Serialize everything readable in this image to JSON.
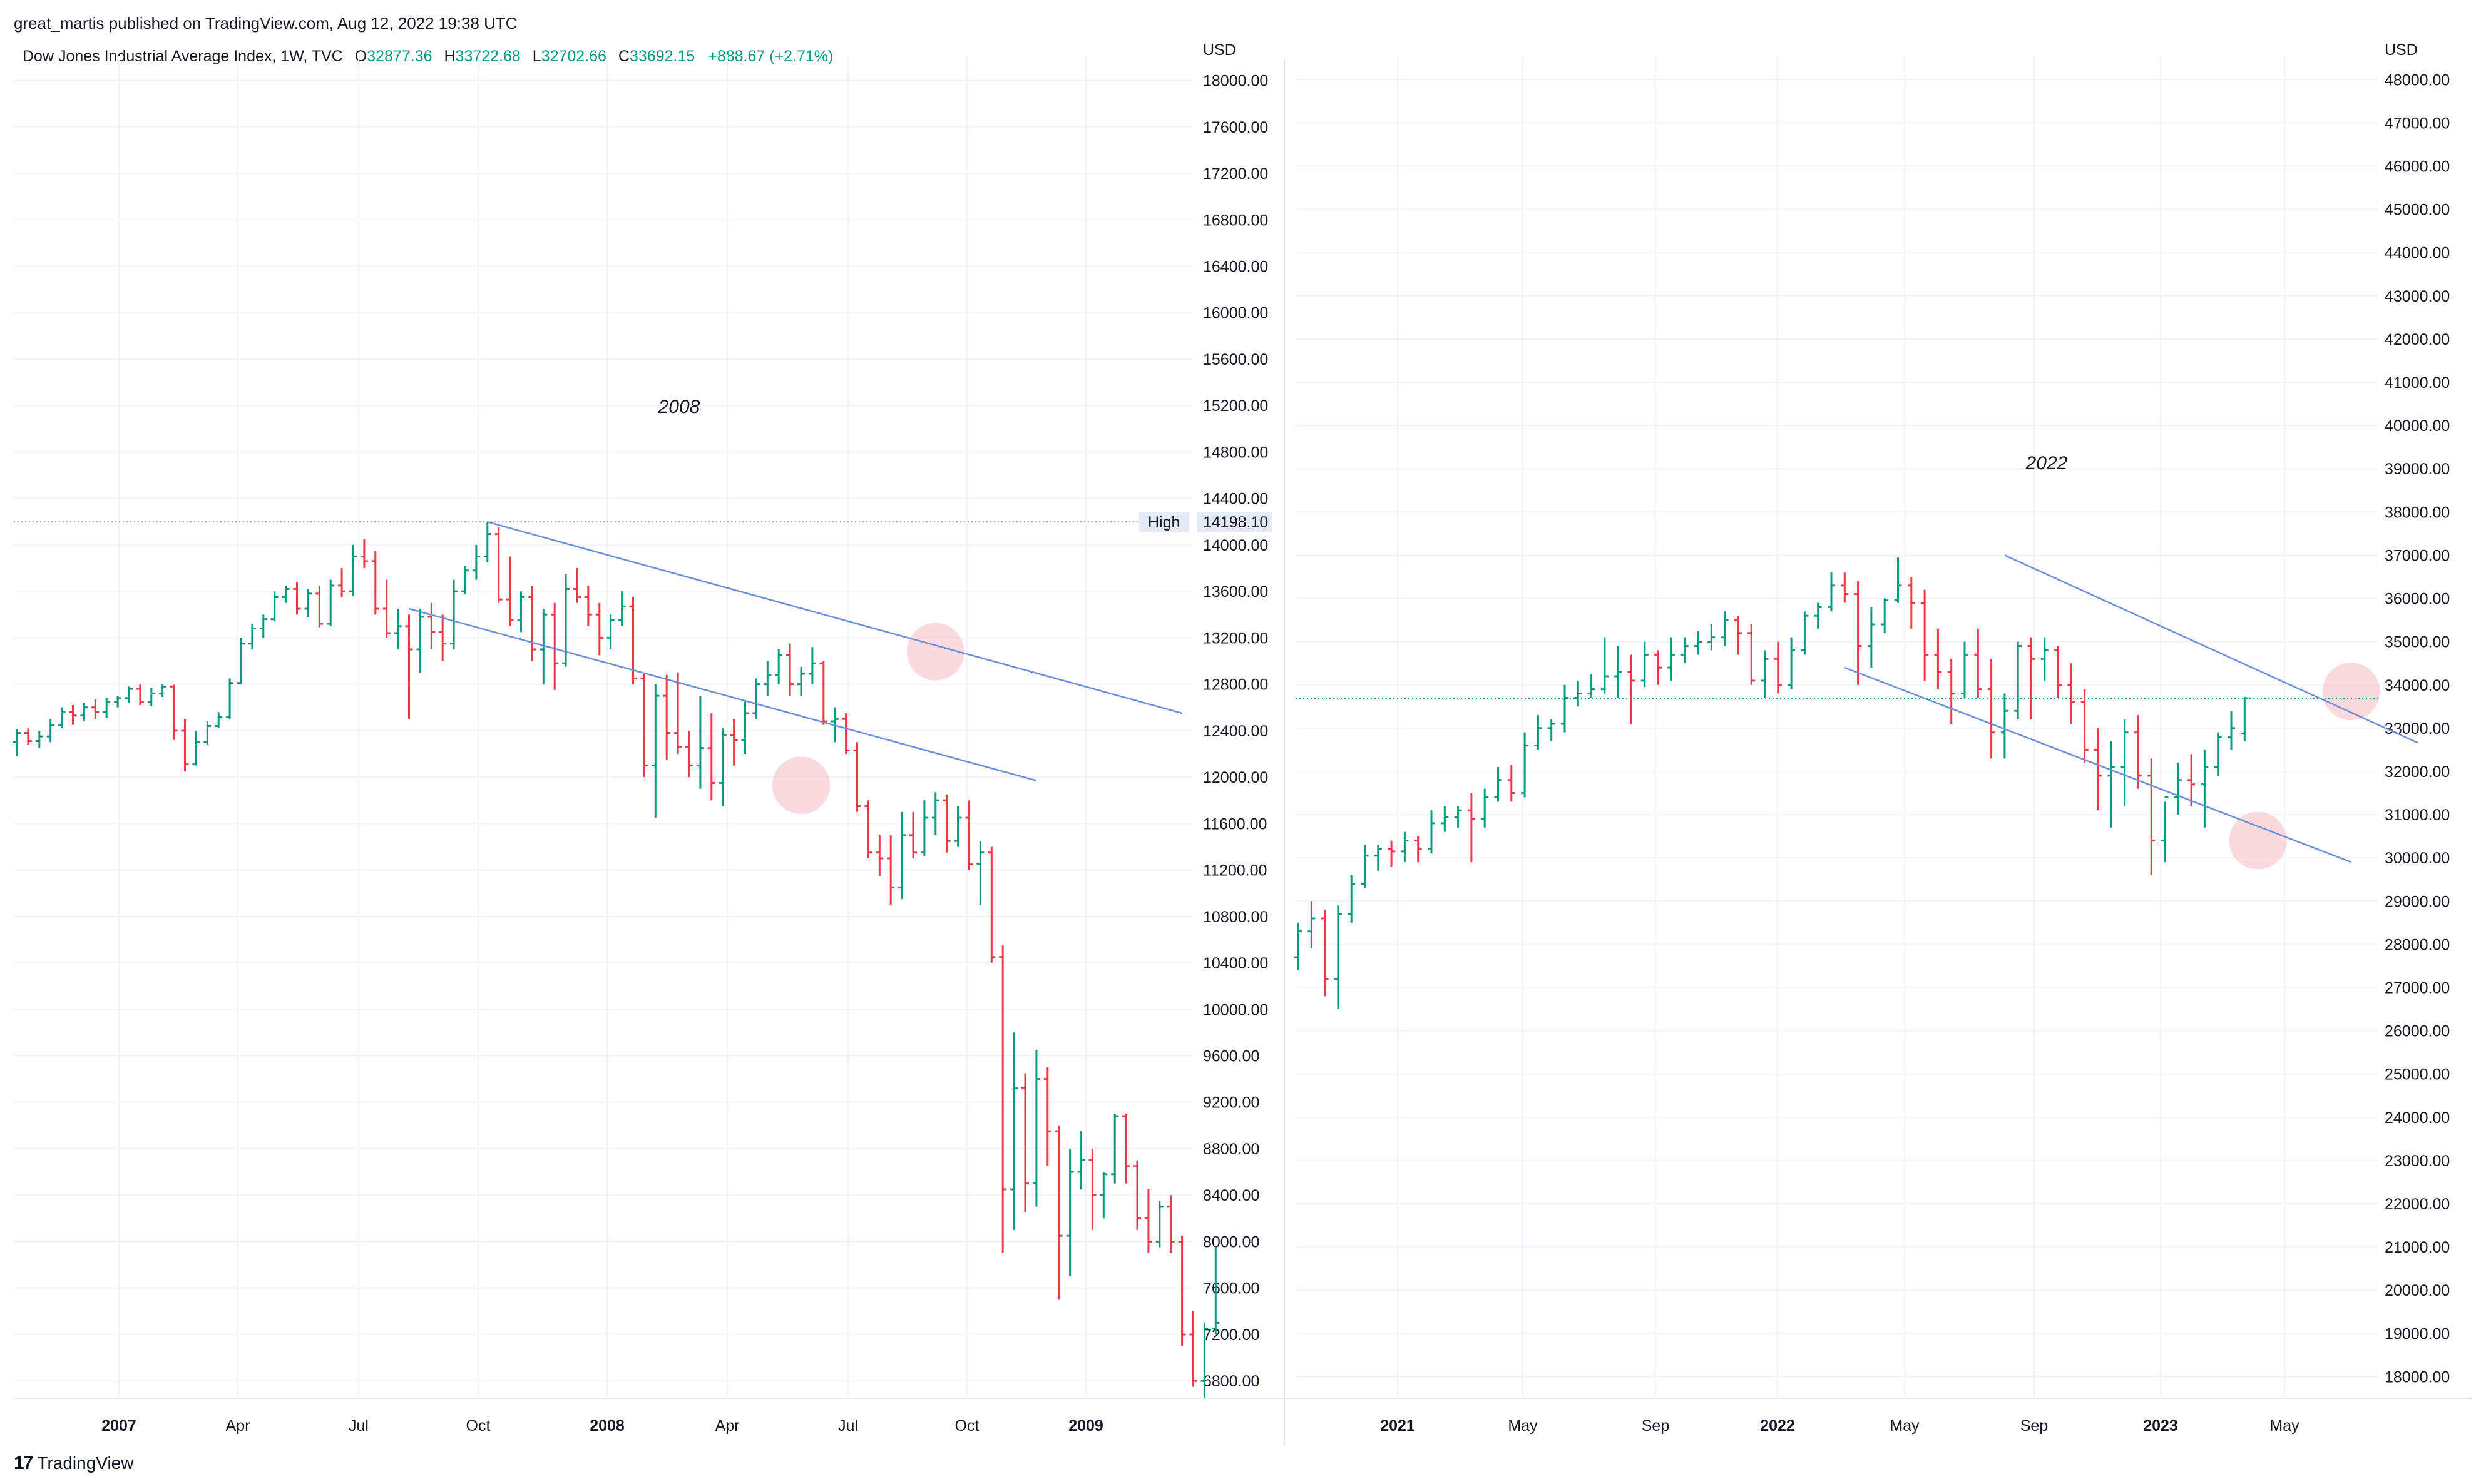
{
  "header": {
    "published": "great_martis published on TradingView.com, Aug 12, 2022 19:38 UTC",
    "symbol": "Dow Jones Industrial Average Index, 1W, TVC",
    "o_label": "O",
    "o_value": "32877.36",
    "h_label": "H",
    "h_value": "33722.68",
    "l_label": "L",
    "l_value": "32702.66",
    "c_label": "C",
    "c_value": "33692.15",
    "change": "+888.67 (+2.71%)"
  },
  "footer": {
    "logo_mark": "17",
    "logo_text": "TradingView"
  },
  "colors": {
    "up": "#089981",
    "down": "#F23645",
    "trend": "#6A8FD8",
    "highlight": "#F7BCC4",
    "grid": "#F0F3FA"
  },
  "chart_data": [
    {
      "type": "ohlc",
      "currency_label": "USD",
      "annotation": "2008",
      "ylim": [
        6650,
        18100
      ],
      "y_ticks": [
        "18000.00",
        "17600.00",
        "17200.00",
        "16800.00",
        "16400.00",
        "16000.00",
        "15600.00",
        "15200.00",
        "14800.00",
        "14400.00",
        "14000.00",
        "13600.00",
        "13200.00",
        "12800.00",
        "12400.00",
        "12000.00",
        "11600.00",
        "11200.00",
        "10800.00",
        "10400.00",
        "10000.00",
        "9600.00",
        "9200.00",
        "8800.00",
        "8400.00",
        "8000.00",
        "7600.00",
        "7200.00",
        "6800.00"
      ],
      "x_ticks": [
        {
          "label": "2007",
          "year": true
        },
        {
          "label": "Apr"
        },
        {
          "label": "Jul"
        },
        {
          "label": "Oct"
        },
        {
          "label": "2008",
          "year": true
        },
        {
          "label": "Apr"
        },
        {
          "label": "Jul"
        },
        {
          "label": "Oct"
        },
        {
          "label": "2009",
          "year": true
        }
      ],
      "high_marker": {
        "label": "High",
        "value": "14198.10",
        "price": 14198.1
      },
      "bars": [
        [
          12300,
          12410,
          12180,
          12380
        ],
        [
          12380,
          12420,
          12280,
          12310
        ],
        [
          12310,
          12400,
          12250,
          12350
        ],
        [
          12350,
          12500,
          12300,
          12450
        ],
        [
          12450,
          12600,
          12420,
          12560
        ],
        [
          12560,
          12620,
          12450,
          12530
        ],
        [
          12530,
          12640,
          12480,
          12600
        ],
        [
          12600,
          12670,
          12500,
          12560
        ],
        [
          12560,
          12680,
          12510,
          12650
        ],
        [
          12650,
          12700,
          12600,
          12680
        ],
        [
          12680,
          12780,
          12640,
          12760
        ],
        [
          12760,
          12800,
          12620,
          12650
        ],
        [
          12650,
          12770,
          12610,
          12720
        ],
        [
          12720,
          12800,
          12690,
          12780
        ],
        [
          12780,
          12795,
          12320,
          12400
        ],
        [
          12400,
          12500,
          12050,
          12110
        ],
        [
          12110,
          12400,
          12100,
          12300
        ],
        [
          12300,
          12480,
          12280,
          12440
        ],
        [
          12440,
          12560,
          12420,
          12520
        ],
        [
          12520,
          12850,
          12500,
          12810
        ],
        [
          12810,
          13200,
          12800,
          13150
        ],
        [
          13150,
          13320,
          13100,
          13280
        ],
        [
          13280,
          13400,
          13200,
          13360
        ],
        [
          13360,
          13600,
          13340,
          13550
        ],
        [
          13550,
          13650,
          13500,
          13620
        ],
        [
          13620,
          13680,
          13400,
          13450
        ],
        [
          13450,
          13620,
          13380,
          13580
        ],
        [
          13580,
          13650,
          13290,
          13320
        ],
        [
          13320,
          13700,
          13300,
          13650
        ],
        [
          13650,
          13800,
          13550,
          13600
        ],
        [
          13600,
          14000,
          13560,
          13900
        ],
        [
          13900,
          14050,
          13800,
          13860
        ],
        [
          13860,
          13950,
          13400,
          13450
        ],
        [
          13450,
          13700,
          13200,
          13240
        ],
        [
          13240,
          13450,
          13100,
          13300
        ],
        [
          13300,
          13400,
          12500,
          13100
        ],
        [
          13100,
          13450,
          12900,
          13380
        ],
        [
          13380,
          13500,
          13100,
          13250
        ],
        [
          13250,
          13400,
          13000,
          13150
        ],
        [
          13150,
          13700,
          13100,
          13600
        ],
        [
          13600,
          13820,
          13580,
          13780
        ],
        [
          13780,
          14000,
          13700,
          13900
        ],
        [
          13900,
          14198,
          13850,
          14093
        ],
        [
          14093,
          14150,
          13500,
          13530
        ],
        [
          13530,
          13900,
          13300,
          13350
        ],
        [
          13350,
          13600,
          13250,
          13550
        ],
        [
          13550,
          13650,
          13000,
          13100
        ],
        [
          13100,
          13450,
          12800,
          13400
        ],
        [
          13400,
          13500,
          12750,
          12980
        ],
        [
          12980,
          13750,
          12950,
          13620
        ],
        [
          13620,
          13800,
          13500,
          13550
        ],
        [
          13550,
          13650,
          13300,
          13400
        ],
        [
          13400,
          13500,
          13050,
          13200
        ],
        [
          13200,
          13400,
          13100,
          13350
        ],
        [
          13350,
          13600,
          13300,
          13470
        ],
        [
          13470,
          13550,
          12800,
          12850
        ],
        [
          12850,
          12900,
          12000,
          12100
        ],
        [
          12100,
          12800,
          11650,
          12700
        ],
        [
          12700,
          12880,
          12150,
          12380
        ],
        [
          12380,
          12900,
          12200,
          12260
        ],
        [
          12260,
          12400,
          12000,
          12100
        ],
        [
          12100,
          12700,
          11900,
          12250
        ],
        [
          12250,
          12550,
          11800,
          11950
        ],
        [
          11950,
          12420,
          11750,
          12360
        ],
        [
          12360,
          12500,
          12100,
          12320
        ],
        [
          12320,
          12650,
          12200,
          12550
        ],
        [
          12550,
          12850,
          12500,
          12800
        ],
        [
          12800,
          13000,
          12700,
          12880
        ],
        [
          12880,
          13100,
          12800,
          13050
        ],
        [
          13050,
          13150,
          12700,
          12800
        ],
        [
          12800,
          12950,
          12700,
          12890
        ],
        [
          12890,
          13120,
          12800,
          12980
        ],
        [
          12980,
          13000,
          12450,
          12480
        ],
        [
          12480,
          12600,
          12300,
          12500
        ],
        [
          12500,
          12550,
          12200,
          12230
        ],
        [
          12230,
          12300,
          11700,
          11750
        ],
        [
          11750,
          11800,
          11300,
          11350
        ],
        [
          11350,
          11500,
          11150,
          11300
        ],
        [
          11300,
          11500,
          10900,
          11050
        ],
        [
          11050,
          11700,
          10950,
          11500
        ],
        [
          11500,
          11700,
          11300,
          11350
        ],
        [
          11350,
          11800,
          11320,
          11650
        ],
        [
          11650,
          11870,
          11500,
          11800
        ],
        [
          11800,
          11850,
          11350,
          11450
        ],
        [
          11450,
          11750,
          11400,
          11650
        ],
        [
          11650,
          11800,
          11200,
          11250
        ],
        [
          11250,
          11450,
          10900,
          11350
        ],
        [
          11350,
          11400,
          10400,
          10450
        ],
        [
          10450,
          10550,
          7900,
          8450
        ],
        [
          8450,
          9800,
          8100,
          9320
        ],
        [
          9320,
          9450,
          8250,
          8500
        ],
        [
          8500,
          9650,
          8300,
          9400
        ],
        [
          9400,
          9500,
          8650,
          8950
        ],
        [
          8950,
          9000,
          7500,
          8050
        ],
        [
          8050,
          8800,
          7700,
          8600
        ],
        [
          8600,
          8950,
          8450,
          8700
        ],
        [
          8700,
          8800,
          8100,
          8400
        ],
        [
          8400,
          8600,
          8200,
          8580
        ],
        [
          8580,
          9100,
          8500,
          9080
        ],
        [
          9080,
          9100,
          8500,
          8650
        ],
        [
          8650,
          8700,
          8100,
          8200
        ],
        [
          8200,
          8450,
          7900,
          8000
        ],
        [
          8000,
          8350,
          7950,
          8300
        ],
        [
          8300,
          8400,
          7900,
          8000
        ],
        [
          8000,
          8050,
          7100,
          7200
        ],
        [
          7200,
          7400,
          6750,
          6800
        ],
        [
          6800,
          7300,
          6650,
          7250
        ],
        [
          7250,
          7950,
          7200,
          7300
        ]
      ],
      "trend_upper": [
        [
          42,
          14198
        ],
        [
          104,
          12550
        ]
      ],
      "trend_lower": [
        [
          35,
          13450
        ],
        [
          91,
          11970
        ]
      ],
      "highlights": [
        {
          "index": 82,
          "price": 13080
        },
        {
          "index": 70,
          "price": 11930
        }
      ]
    },
    {
      "type": "ohlc",
      "currency_label": "USD",
      "annotation": "2022",
      "ylim": [
        17500,
        48250
      ],
      "y_ticks": [
        "48000.00",
        "47000.00",
        "46000.00",
        "45000.00",
        "44000.00",
        "43000.00",
        "42000.00",
        "41000.00",
        "40000.00",
        "39000.00",
        "38000.00",
        "37000.00",
        "36000.00",
        "35000.00",
        "34000.00",
        "33000.00",
        "32000.00",
        "31000.00",
        "30000.00",
        "29000.00",
        "28000.00",
        "27000.00",
        "26000.00",
        "25000.00",
        "24000.00",
        "23000.00",
        "22000.00",
        "21000.00",
        "20000.00",
        "19000.00",
        "18000.00"
      ],
      "x_ticks": [
        {
          "label": "2021",
          "year": true
        },
        {
          "label": "May"
        },
        {
          "label": "Sep"
        },
        {
          "label": "2022",
          "year": true
        },
        {
          "label": "May"
        },
        {
          "label": "Sep"
        },
        {
          "label": "2023",
          "year": true
        },
        {
          "label": "May"
        }
      ],
      "last_price_line": 33692.15,
      "bars": [
        [
          27700,
          28500,
          27400,
          28300
        ],
        [
          28300,
          29000,
          27900,
          28600
        ],
        [
          28600,
          28800,
          26800,
          27200
        ],
        [
          27200,
          28900,
          26500,
          28700
        ],
        [
          28700,
          29600,
          28500,
          29400
        ],
        [
          29400,
          30300,
          29300,
          30050
        ],
        [
          30050,
          30300,
          29700,
          30200
        ],
        [
          30200,
          30400,
          29800,
          30150
        ],
        [
          30150,
          30600,
          29900,
          30400
        ],
        [
          30400,
          30500,
          29900,
          30200
        ],
        [
          30200,
          31100,
          30100,
          30800
        ],
        [
          30800,
          31200,
          30600,
          30950
        ],
        [
          30950,
          31200,
          30700,
          31100
        ],
        [
          31100,
          31500,
          29900,
          30900
        ],
        [
          30900,
          31600,
          30700,
          31400
        ],
        [
          31400,
          32100,
          31300,
          31800
        ],
        [
          31800,
          32150,
          31300,
          31500
        ],
        [
          31500,
          32900,
          31400,
          32600
        ],
        [
          32600,
          33300,
          32500,
          33000
        ],
        [
          33000,
          33200,
          32700,
          33100
        ],
        [
          33100,
          34000,
          32900,
          33700
        ],
        [
          33700,
          34100,
          33500,
          33800
        ],
        [
          33800,
          34250,
          33700,
          33900
        ],
        [
          33900,
          35100,
          33800,
          34200
        ],
        [
          34200,
          34900,
          33700,
          34300
        ],
        [
          34300,
          34700,
          33100,
          34100
        ],
        [
          34100,
          35000,
          33950,
          34700
        ],
        [
          34700,
          34800,
          34000,
          34400
        ],
        [
          34400,
          35100,
          34100,
          34700
        ],
        [
          34700,
          35100,
          34500,
          34900
        ],
        [
          34900,
          35250,
          34700,
          35000
        ],
        [
          35000,
          35400,
          34800,
          35100
        ],
        [
          35100,
          35700,
          34900,
          35500
        ],
        [
          35500,
          35600,
          34700,
          35200
        ],
        [
          35200,
          35400,
          34000,
          34100
        ],
        [
          34100,
          34800,
          33700,
          34600
        ],
        [
          34600,
          35000,
          33800,
          34000
        ],
        [
          34000,
          35100,
          33900,
          34800
        ],
        [
          34800,
          35700,
          34700,
          35600
        ],
        [
          35600,
          35900,
          35300,
          35800
        ],
        [
          35800,
          36600,
          35700,
          36300
        ],
        [
          36300,
          36600,
          35900,
          36100
        ],
        [
          36100,
          36400,
          34000,
          34900
        ],
        [
          34900,
          35800,
          34400,
          35400
        ],
        [
          35400,
          36000,
          35200,
          35970
        ],
        [
          35970,
          36950,
          35900,
          36300
        ],
        [
          36300,
          36500,
          35300,
          35900
        ],
        [
          35900,
          36200,
          34100,
          34700
        ],
        [
          34700,
          35300,
          33900,
          34300
        ],
        [
          34300,
          34600,
          33100,
          33800
        ],
        [
          33800,
          35000,
          33700,
          34700
        ],
        [
          34700,
          35300,
          33700,
          33900
        ],
        [
          33900,
          34600,
          32300,
          32900
        ],
        [
          32900,
          33800,
          32300,
          33400
        ],
        [
          33400,
          35000,
          33200,
          34900
        ],
        [
          34900,
          35100,
          33200,
          34600
        ],
        [
          34600,
          35100,
          34100,
          34800
        ],
        [
          34800,
          34900,
          33700,
          34000
        ],
        [
          34000,
          34500,
          33100,
          33600
        ],
        [
          33600,
          33900,
          32200,
          32500
        ],
        [
          32500,
          33000,
          31100,
          31900
        ],
        [
          31900,
          32700,
          30700,
          32100
        ],
        [
          32100,
          33200,
          31200,
          32900
        ],
        [
          32900,
          33300,
          31600,
          31900
        ],
        [
          31900,
          32300,
          29600,
          30400
        ],
        [
          30400,
          31300,
          29900,
          31400
        ],
        [
          31400,
          32200,
          31000,
          31800
        ],
        [
          31800,
          32400,
          31200,
          31700
        ],
        [
          31700,
          32500,
          30700,
          32100
        ],
        [
          32100,
          32900,
          31900,
          32800
        ],
        [
          32800,
          33400,
          32500,
          33000
        ],
        [
          32877,
          33723,
          32703,
          33692
        ]
      ],
      "trend_upper": [
        [
          53,
          37000
        ],
        [
          84,
          32660
        ]
      ],
      "trend_lower": [
        [
          41,
          34400
        ],
        [
          79,
          29900
        ]
      ],
      "highlights": [
        {
          "index": 72,
          "price": 30400
        },
        {
          "index": 79,
          "price": 33850
        }
      ]
    }
  ]
}
